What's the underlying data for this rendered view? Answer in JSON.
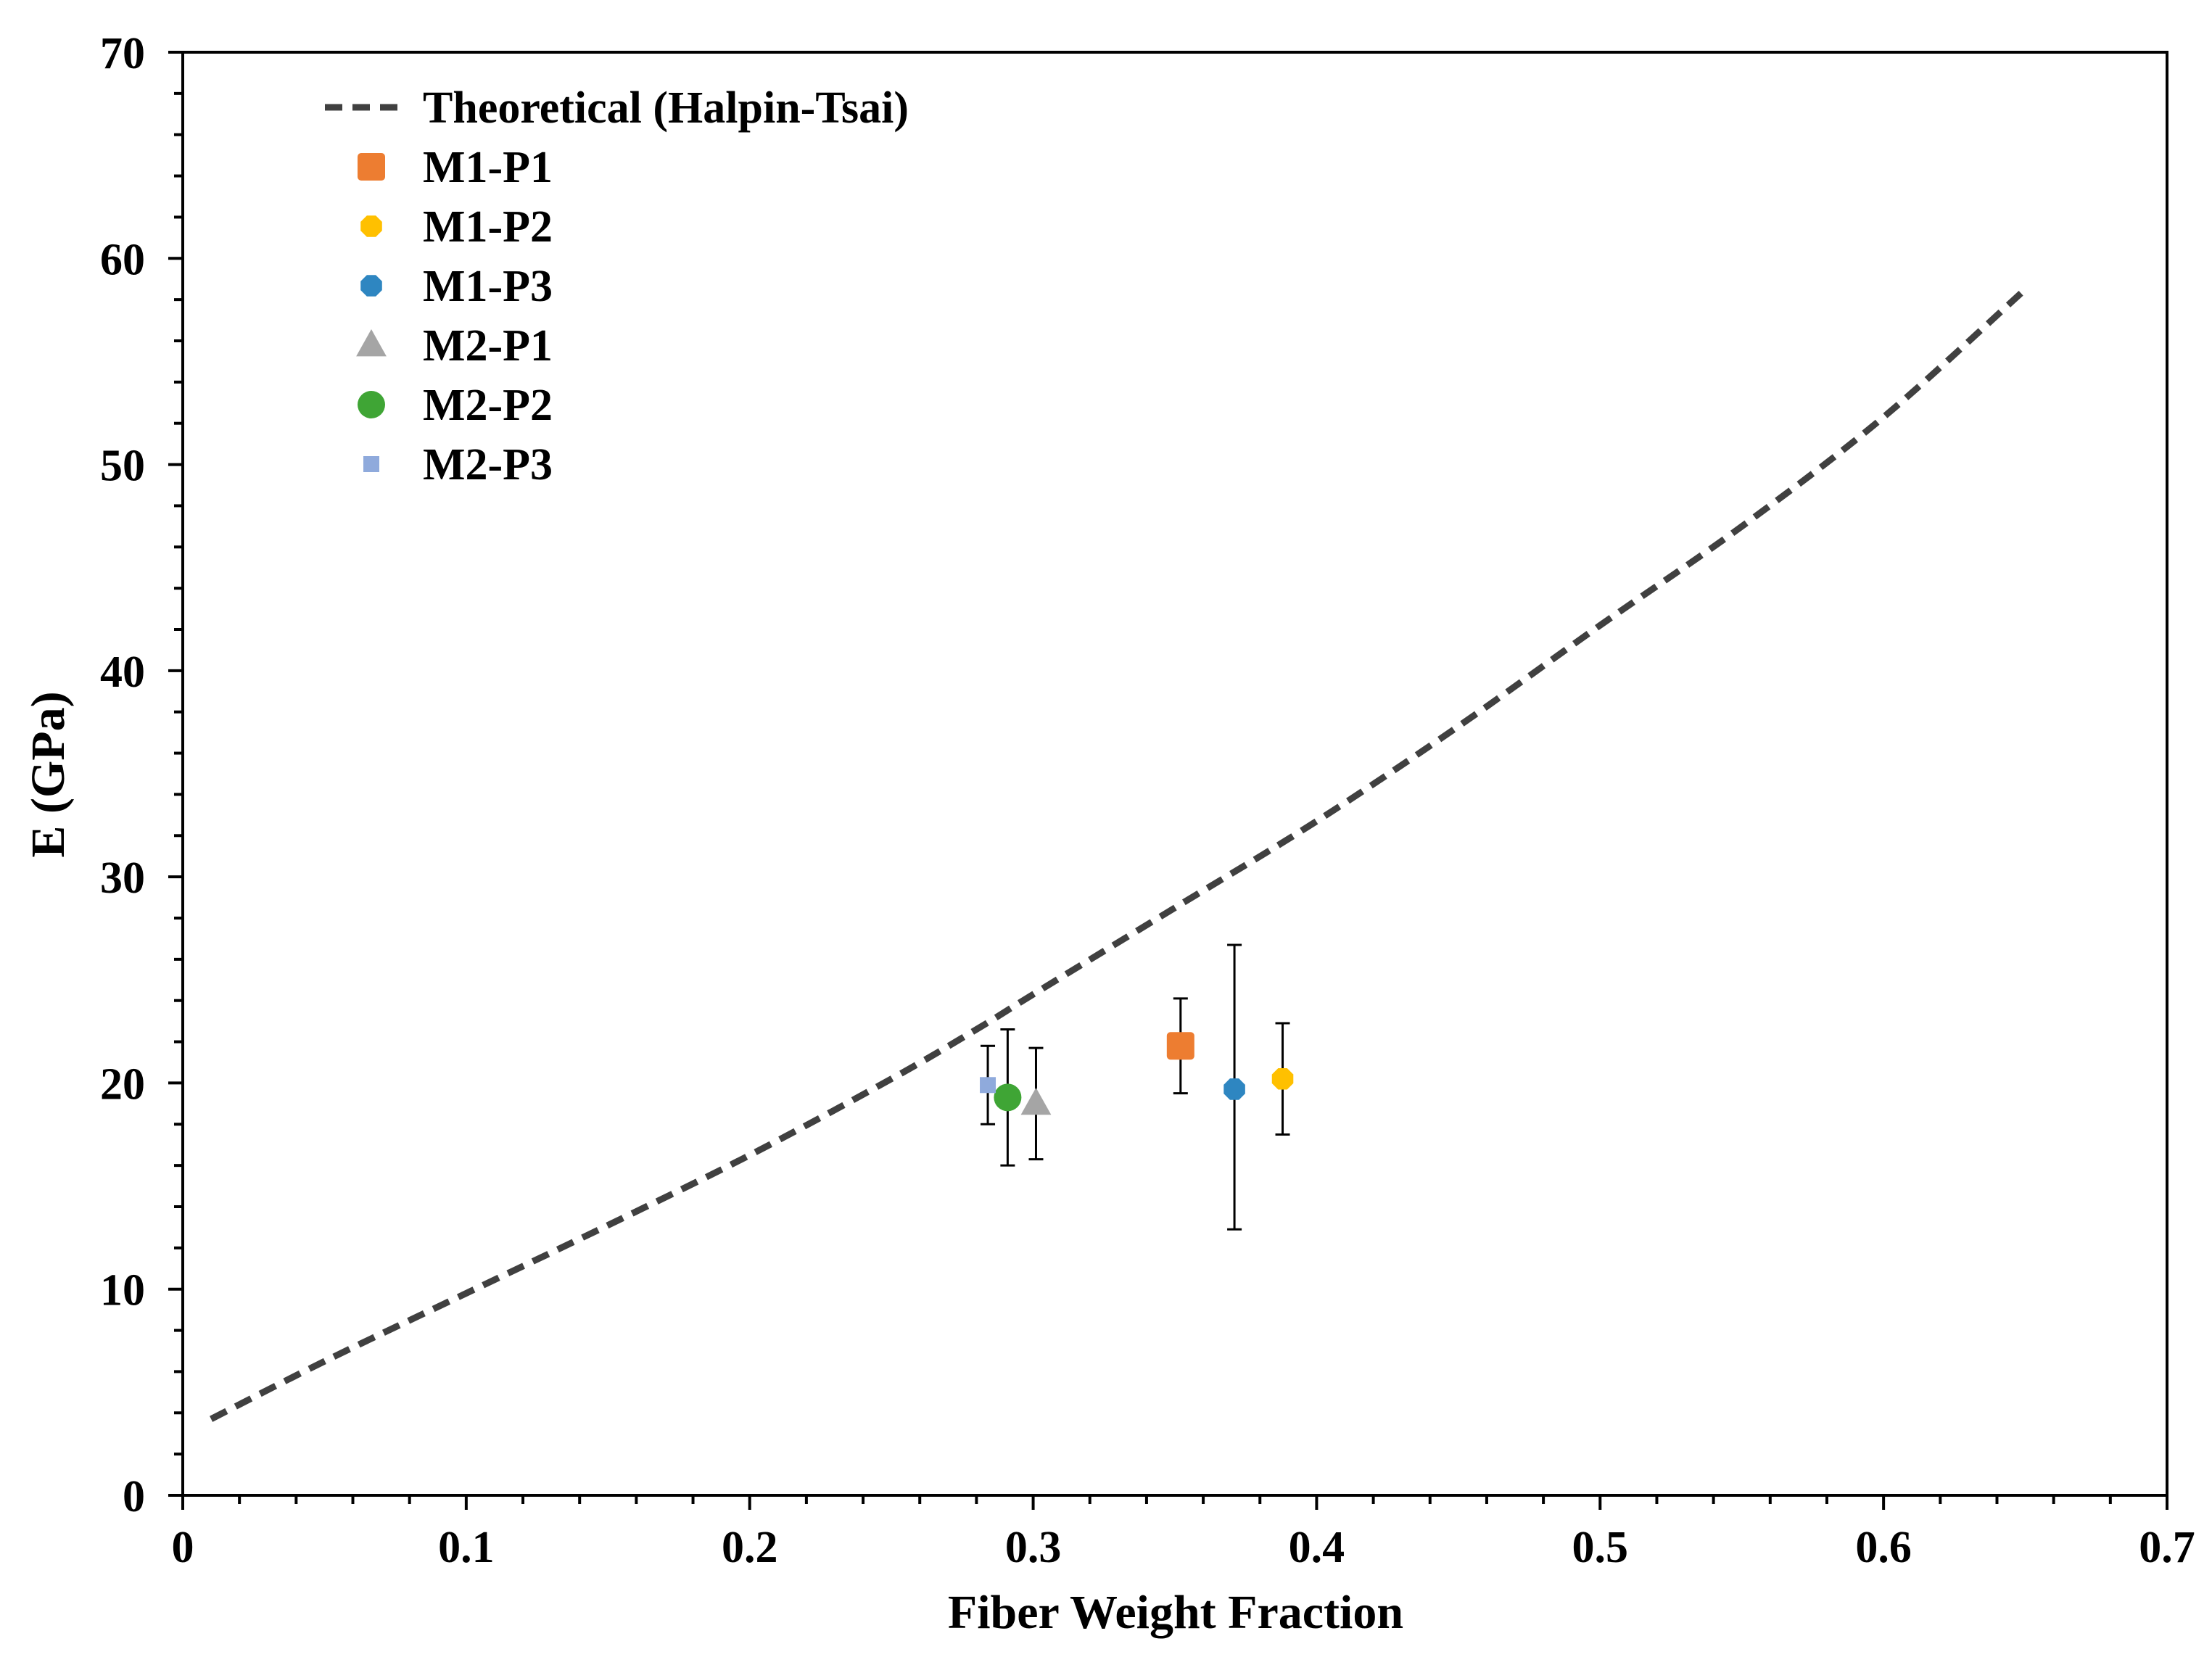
{
  "chart_data": {
    "type": "scatter",
    "title": "",
    "xlabel": "Fiber Weight Fraction",
    "ylabel": "E (GPa)",
    "xlim": [
      0,
      0.7
    ],
    "ylim": [
      0,
      70
    ],
    "grid": false,
    "legend_position": "top-left",
    "x_ticks": [
      0,
      0.1,
      0.2,
      0.3,
      0.4,
      0.5,
      0.6,
      0.7
    ],
    "x_tick_labels": [
      "0",
      "0.1",
      "0.2",
      "0.3",
      "0.4",
      "0.5",
      "0.6",
      "0.7"
    ],
    "y_ticks": [
      0,
      10,
      20,
      30,
      40,
      50,
      60,
      70
    ],
    "y_tick_labels": [
      "0",
      "10",
      "20",
      "30",
      "40",
      "50",
      "60",
      "70"
    ],
    "theoretical": {
      "name": "Theoretical (Halpin-Tsai)",
      "style": "dashed",
      "color": "#404040",
      "x": [
        0.01,
        0.05,
        0.1,
        0.15,
        0.2,
        0.25,
        0.28,
        0.3,
        0.35,
        0.4,
        0.45,
        0.5,
        0.55,
        0.6,
        0.65
      ],
      "y": [
        3.7,
        6.5,
        9.8,
        13.1,
        16.5,
        20.2,
        22.6,
        24.3,
        28.5,
        32.7,
        37.3,
        42.2,
        47.0,
        52.3,
        58.5
      ]
    },
    "series": [
      {
        "name": "M1-P1",
        "marker": "square",
        "color": "#ED7D31",
        "x": 0.352,
        "y": 21.8,
        "err_low": 19.5,
        "err_high": 24.1
      },
      {
        "name": "M1-P2",
        "marker": "hexagon",
        "color": "#FFC000",
        "x": 0.388,
        "y": 20.2,
        "err_low": 17.5,
        "err_high": 22.9
      },
      {
        "name": "M1-P3",
        "marker": "hexagon",
        "color": "#2E86C1",
        "x": 0.371,
        "y": 19.7,
        "err_low": 12.9,
        "err_high": 26.7
      },
      {
        "name": "M2-P1",
        "marker": "triangle",
        "color": "#A5A5A5",
        "x": 0.301,
        "y": 19.0,
        "err_low": 16.3,
        "err_high": 21.7
      },
      {
        "name": "M2-P2",
        "marker": "circle",
        "color": "#3FA535",
        "x": 0.291,
        "y": 19.3,
        "err_low": 16.0,
        "err_high": 22.6
      },
      {
        "name": "M2-P3",
        "marker": "small-square",
        "color": "#8FAADC",
        "x": 0.284,
        "y": 19.9,
        "err_low": 18.0,
        "err_high": 21.8
      }
    ]
  }
}
